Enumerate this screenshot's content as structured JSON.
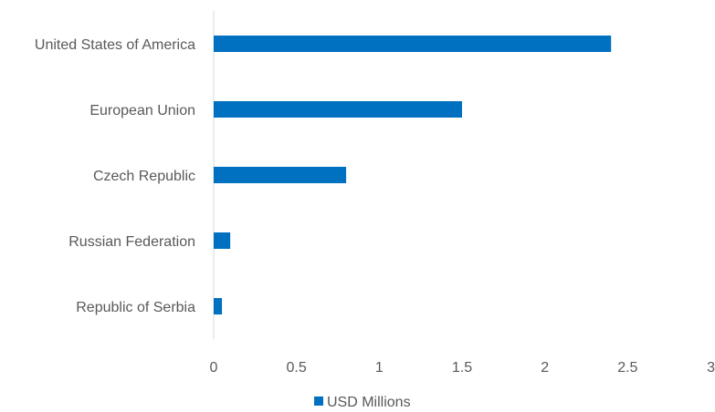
{
  "chart_data": {
    "type": "bar",
    "orientation": "horizontal",
    "categories": [
      "United States of America",
      "European Union",
      "Czech Republic",
      "Russian Federation",
      "Republic of Serbia"
    ],
    "series": [
      {
        "name": "USD  Millions",
        "values": [
          2.4,
          1.5,
          0.8,
          0.1,
          0.05
        ],
        "color": "#0070C0"
      }
    ],
    "xlim": [
      0,
      3
    ],
    "xticks": [
      "0",
      "0.5",
      "1",
      "1.5",
      "2",
      "2.5",
      "3"
    ],
    "grid": false,
    "legend_position": "bottom"
  }
}
